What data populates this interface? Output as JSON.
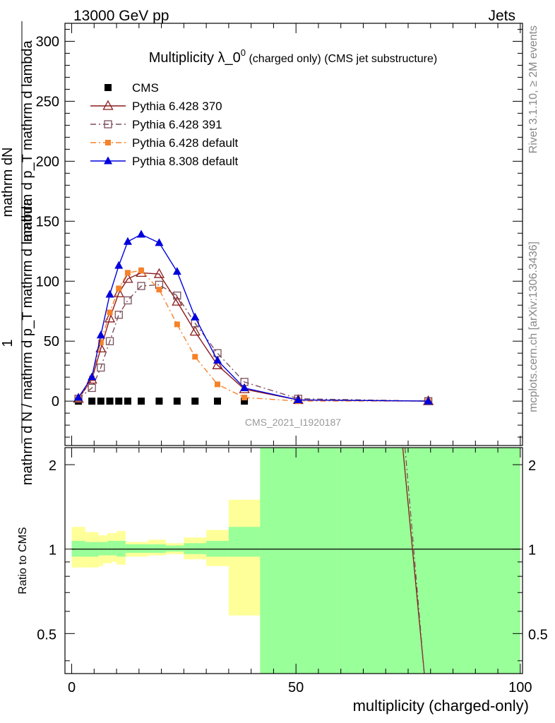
{
  "header": {
    "left": "13000 GeV pp",
    "right": "Jets"
  },
  "side_labels": {
    "rivet": "Rivet 3.1.10, ≥ 2M events",
    "mcplots": "mcplots.cern.ch [arXiv:1306.3436]"
  },
  "watermark": "CMS_2021_I1920187",
  "chart_data": [
    {
      "type": "line",
      "title_main": "Multiplicity λ_0",
      "title_sup": "0",
      "title_tail": " (charged only) (CMS jet substructure)",
      "ylabel_numerator": "mathrm dN",
      "ylabel_denominator": "mathrm d p_T mathrm d lambda",
      "ylabel_one": "1",
      "ylabel_bottom": "mathrm d N / mathrm d p_T mathrm d lambda",
      "xlim": [
        -1.5,
        100.5
      ],
      "ylim": [
        -37,
        315
      ],
      "yticks": [
        0,
        50,
        100,
        150,
        200,
        250,
        300
      ],
      "yticklabels": [
        "0",
        "50",
        "100",
        "150",
        "200",
        "250",
        "300"
      ],
      "legend_position": "top-left",
      "series": [
        {
          "name": "CMS",
          "color": "#000000",
          "marker": "filled-square",
          "x": [
            1.5,
            4.5,
            6.5,
            8.5,
            10.5,
            12.5,
            15.5,
            19.5,
            23.5,
            27.5,
            32.5,
            38.5
          ],
          "y": [
            0,
            0,
            0,
            0,
            0,
            0,
            0,
            0,
            0,
            0,
            0,
            0
          ]
        },
        {
          "name": "Pythia 6.428 370",
          "color": "#8b1a1a",
          "marker": "open-triangle",
          "line": "solid",
          "x": [
            1.5,
            4.5,
            6.5,
            8.5,
            10.5,
            12.5,
            15.5,
            19.5,
            23.5,
            27.5,
            32.5,
            38.5,
            50.5,
            79.5
          ],
          "y": [
            2,
            18,
            44,
            69,
            90,
            102,
            107,
            106,
            83,
            58,
            30,
            10,
            1,
            0
          ]
        },
        {
          "name": "Pythia 6.428 391",
          "color": "#7a4f5a",
          "marker": "open-square",
          "line": "dash-dot",
          "x": [
            1.5,
            4.5,
            6.5,
            8.5,
            10.5,
            12.5,
            15.5,
            19.5,
            23.5,
            27.5,
            32.5,
            38.5,
            50.5,
            79.5
          ],
          "y": [
            2,
            11,
            28,
            50,
            72,
            84,
            96,
            97,
            88,
            65,
            40,
            16,
            2,
            0
          ]
        },
        {
          "name": "Pythia 6.428 default",
          "color": "#f5822a",
          "marker": "filled-small-square",
          "line": "dash-dot",
          "x": [
            1.5,
            4.5,
            6.5,
            8.5,
            10.5,
            12.5,
            15.5,
            19.5,
            23.5,
            27.5,
            32.5,
            38.5,
            50.5,
            79.5
          ],
          "y": [
            2,
            19,
            49,
            74,
            94,
            107,
            109,
            93,
            64,
            37,
            14,
            3,
            0,
            0
          ]
        },
        {
          "name": "Pythia 8.308 default",
          "color": "#0000dd",
          "marker": "filled-triangle",
          "line": "solid",
          "x": [
            1.5,
            4.5,
            6.5,
            8.5,
            10.5,
            12.5,
            15.5,
            19.5,
            23.5,
            27.5,
            32.5,
            38.5,
            50.5,
            79.5
          ],
          "y": [
            3,
            20,
            55,
            89,
            113,
            133,
            139,
            132,
            108,
            70,
            34,
            11,
            1,
            0
          ]
        }
      ]
    },
    {
      "type": "area",
      "ylabel": "Ratio to CMS",
      "xlabel": "multiplicity (charged-only)",
      "xlim": [
        -1.5,
        100.5
      ],
      "ylim": [
        0.36,
        2.3
      ],
      "scale": "log",
      "yticks": [
        0.5,
        1,
        2
      ],
      "yticklabels": [
        "0.5",
        "1",
        "2"
      ],
      "xticks": [
        0,
        50,
        100
      ],
      "xticklabels": [
        "0",
        "50",
        "100"
      ],
      "bands": {
        "edges": [
          0,
          3,
          6,
          7,
          8,
          9,
          10,
          11,
          12,
          14,
          17,
          18,
          21,
          23,
          25,
          27,
          30,
          35,
          42,
          59,
          100
        ],
        "stat_low": [
          0.94,
          0.94,
          0.95,
          0.95,
          0.95,
          0.95,
          0.94,
          0.94,
          0.97,
          0.97,
          0.97,
          0.97,
          0.98,
          0.98,
          0.96,
          0.96,
          0.94,
          0.94,
          0.36,
          0.36
        ],
        "stat_high": [
          1.07,
          1.06,
          1.06,
          1.06,
          1.07,
          1.07,
          1.07,
          1.07,
          1.04,
          1.04,
          1.04,
          1.04,
          1.03,
          1.03,
          1.05,
          1.05,
          1.07,
          1.2,
          2.3,
          2.3
        ],
        "total_low": [
          0.86,
          0.86,
          0.87,
          0.89,
          0.89,
          0.9,
          0.88,
          0.88,
          0.94,
          0.94,
          0.95,
          0.95,
          0.96,
          0.96,
          0.92,
          0.92,
          0.87,
          0.58,
          0.36,
          0.36
        ],
        "total_high": [
          1.2,
          1.15,
          1.12,
          1.12,
          1.14,
          1.14,
          1.16,
          1.16,
          1.06,
          1.06,
          1.08,
          1.08,
          1.05,
          1.05,
          1.1,
          1.1,
          1.17,
          1.5,
          2.3,
          2.3
        ],
        "stat_color": "#99ff99",
        "total_color": "#ffff99"
      },
      "series": [
        {
          "name": "Pythia 6.428 370",
          "color": "#8b1a1a",
          "line": "solid",
          "x": [
            73.8,
            78.6
          ],
          "y": [
            2.3,
            0.36
          ]
        },
        {
          "name": "Pythia 6.428 391",
          "color": "#7a4f5a",
          "line": "dash-dot",
          "x": [
            74.3,
            78.6
          ],
          "y": [
            2.3,
            0.36
          ]
        }
      ]
    }
  ]
}
